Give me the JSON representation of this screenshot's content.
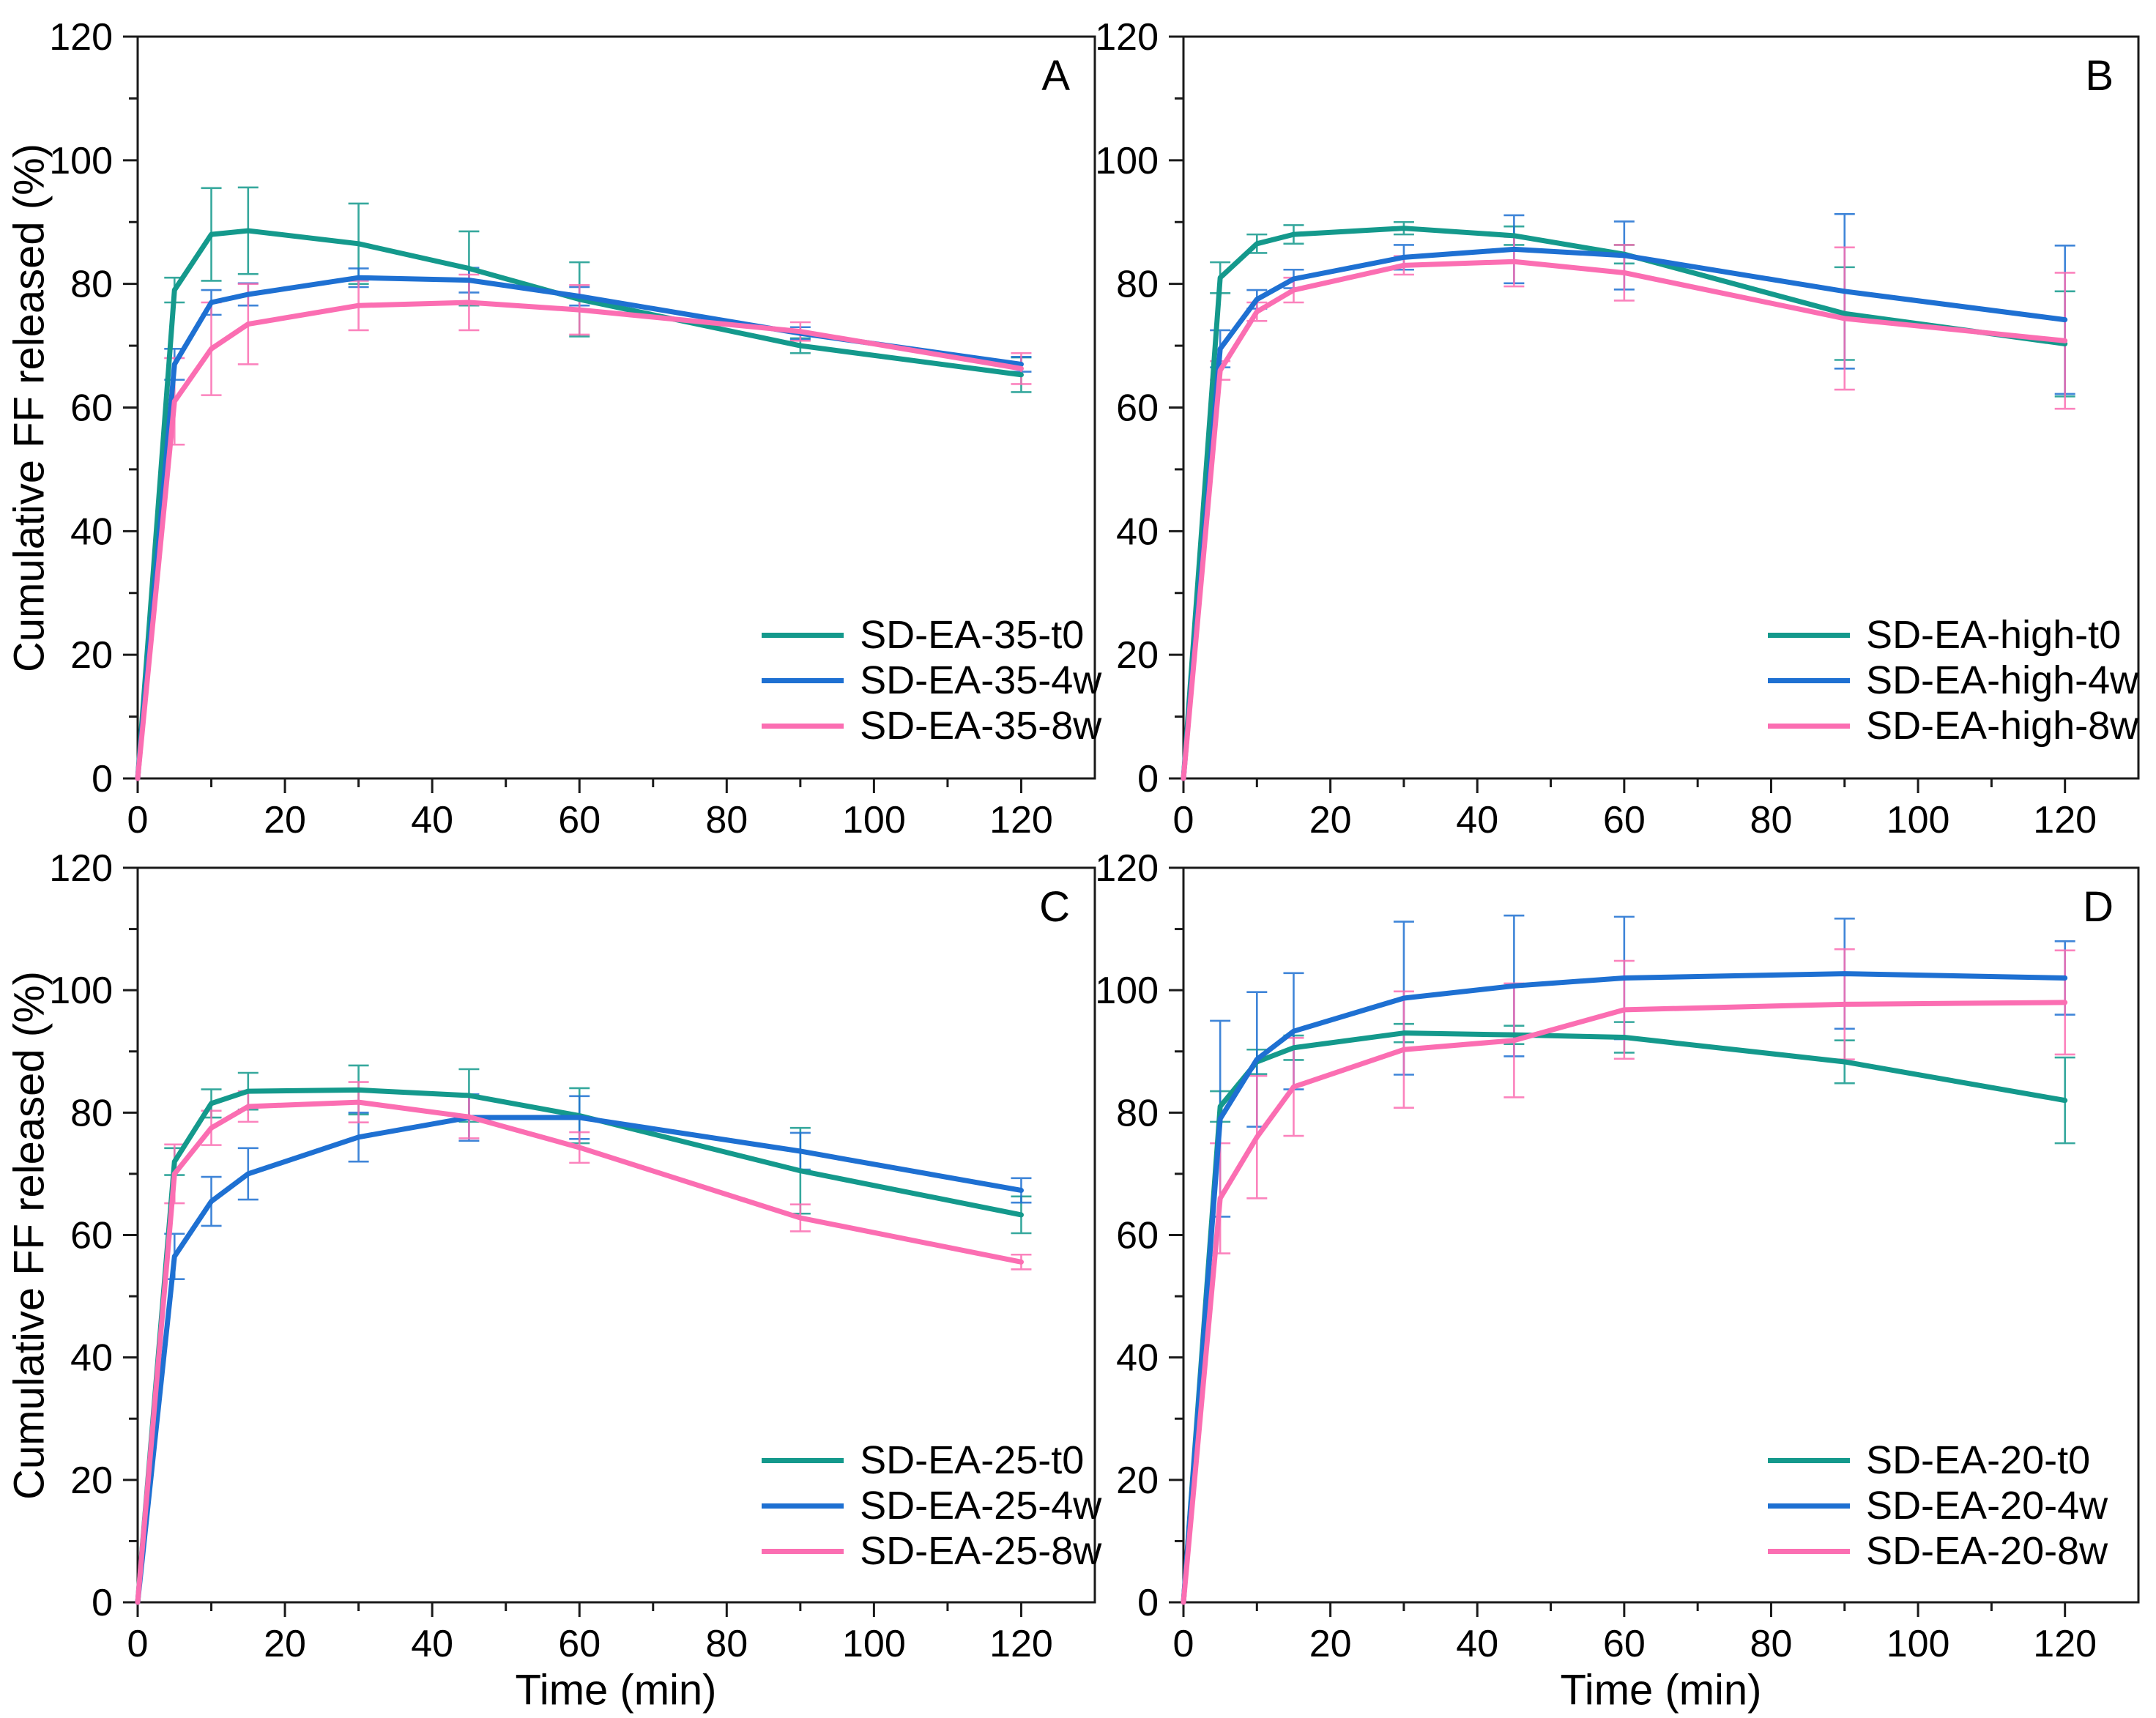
{
  "figure": {
    "y_axis_title": "Cumulative FF released (%)",
    "x_axis_title": "Time (min)",
    "accent_colors": {
      "t0_teal": "#14998C",
      "w4_blue": "#1E70D2",
      "w8_pink": "#FB6EB2",
      "axis_black": "#1a1a1a"
    }
  },
  "chart_data": [
    {
      "type": "line",
      "panel_label": "A",
      "xlabel": "",
      "ylabel": "Cumulative FF released (%)",
      "x": [
        0,
        5,
        10,
        15,
        30,
        45,
        60,
        90,
        120
      ],
      "xlim": [
        0,
        130
      ],
      "ylim": [
        0,
        120
      ],
      "x_ticks": [
        0,
        20,
        40,
        60,
        80,
        100,
        120
      ],
      "y_ticks": [
        0,
        20,
        40,
        60,
        80,
        100,
        120
      ],
      "grid": false,
      "legend_position": "lower right",
      "series": [
        {
          "name": "SD-EA-35-t0",
          "color": "#14998C",
          "values": [
            0,
            79,
            88,
            88.6,
            86.5,
            82.5,
            77.5,
            70,
            65.3
          ],
          "errors": [
            0,
            2,
            7.5,
            7,
            6.5,
            6,
            6,
            1.2,
            2.8
          ]
        },
        {
          "name": "SD-EA-35-4w",
          "color": "#1E70D2",
          "values": [
            0,
            67,
            77,
            78.3,
            81,
            80.6,
            78,
            72,
            67
          ],
          "errors": [
            0,
            2.5,
            2,
            1.8,
            1.5,
            2,
            1.5,
            1,
            1.2
          ]
        },
        {
          "name": "SD-EA-35-8w",
          "color": "#FB6EB2",
          "values": [
            0,
            61,
            69.5,
            73.5,
            76.5,
            77,
            75.8,
            72.3,
            66.3
          ],
          "errors": [
            0,
            7,
            7.5,
            6.5,
            4,
            4.5,
            4,
            1.5,
            2.5
          ]
        }
      ]
    },
    {
      "type": "line",
      "panel_label": "B",
      "xlabel": "",
      "ylabel": "",
      "x": [
        0,
        5,
        10,
        15,
        30,
        45,
        60,
        90,
        120
      ],
      "xlim": [
        0,
        130
      ],
      "ylim": [
        0,
        120
      ],
      "x_ticks": [
        0,
        20,
        40,
        60,
        80,
        100,
        120
      ],
      "y_ticks": [
        0,
        20,
        40,
        60,
        80,
        100,
        120
      ],
      "grid": false,
      "legend_position": "lower right",
      "series": [
        {
          "name": "SD-EA-high-t0",
          "color": "#14998C",
          "values": [
            0,
            81,
            86.5,
            88,
            89,
            87.8,
            84.8,
            75.2,
            70.3
          ],
          "errors": [
            0,
            2.5,
            1.5,
            1.5,
            1,
            1.5,
            1.5,
            7.5,
            8.5
          ]
        },
        {
          "name": "SD-EA-high-4w",
          "color": "#1E70D2",
          "values": [
            0,
            69.5,
            77.5,
            80.8,
            84.3,
            85.6,
            84.6,
            78.8,
            74.2
          ],
          "errors": [
            0,
            3,
            1.5,
            1.5,
            2,
            5.5,
            5.5,
            12.5,
            12
          ]
        },
        {
          "name": "SD-EA-high-8w",
          "color": "#FB6EB2",
          "values": [
            0,
            66,
            75.5,
            79,
            83,
            83.6,
            81.8,
            74.4,
            70.8
          ],
          "errors": [
            0,
            1.5,
            1.5,
            2,
            1.5,
            4,
            4.5,
            11.5,
            11
          ]
        }
      ]
    },
    {
      "type": "line",
      "panel_label": "C",
      "xlabel": "Time (min)",
      "ylabel": "Cumulative FF released (%)",
      "x": [
        0,
        5,
        10,
        15,
        30,
        45,
        60,
        90,
        120
      ],
      "xlim": [
        0,
        130
      ],
      "ylim": [
        0,
        120
      ],
      "x_ticks": [
        0,
        20,
        40,
        60,
        80,
        100,
        120
      ],
      "y_ticks": [
        0,
        20,
        40,
        60,
        80,
        100,
        120
      ],
      "grid": false,
      "legend_position": "lower right",
      "series": [
        {
          "name": "SD-EA-25-t0",
          "color": "#14998C",
          "values": [
            0,
            72,
            81.5,
            83.5,
            83.7,
            82.8,
            79.5,
            70.5,
            63.3
          ],
          "errors": [
            0,
            2.2,
            2.3,
            3,
            4,
            4.3,
            4.5,
            7,
            3
          ]
        },
        {
          "name": "SD-EA-25-4w",
          "color": "#1E70D2",
          "values": [
            0,
            56.5,
            65.5,
            70,
            76,
            79.2,
            79.2,
            73.7,
            67.3
          ],
          "errors": [
            0,
            3.7,
            4,
            4.2,
            4,
            3.8,
            3.5,
            3,
            2
          ]
        },
        {
          "name": "SD-EA-25-8w",
          "color": "#FB6EB2",
          "values": [
            0,
            70,
            77.5,
            81,
            81.7,
            79.3,
            74.3,
            62.8,
            55.6
          ],
          "errors": [
            0,
            4.8,
            2.8,
            2.5,
            3.3,
            3.5,
            2.5,
            2.2,
            1.2
          ]
        }
      ]
    },
    {
      "type": "line",
      "panel_label": "D",
      "xlabel": "Time (min)",
      "ylabel": "",
      "x": [
        0,
        5,
        10,
        15,
        30,
        45,
        60,
        90,
        120
      ],
      "xlim": [
        0,
        130
      ],
      "ylim": [
        0,
        120
      ],
      "x_ticks": [
        0,
        20,
        40,
        60,
        80,
        100,
        120
      ],
      "y_ticks": [
        0,
        20,
        40,
        60,
        80,
        100,
        120
      ],
      "grid": false,
      "legend_position": "lower right",
      "series": [
        {
          "name": "SD-EA-20-t0",
          "color": "#14998C",
          "values": [
            0,
            81,
            88.3,
            90.6,
            93,
            92.7,
            92.3,
            88.3,
            82
          ],
          "errors": [
            0,
            2.5,
            2,
            2,
            1.5,
            1.5,
            2.5,
            3.5,
            7
          ]
        },
        {
          "name": "SD-EA-20-4w",
          "color": "#1E70D2",
          "values": [
            0,
            79,
            88.7,
            93.3,
            98.7,
            100.7,
            102,
            102.7,
            102
          ],
          "errors": [
            0,
            16,
            11,
            9.5,
            12.5,
            11.5,
            10,
            9,
            6
          ]
        },
        {
          "name": "SD-EA-20-8w",
          "color": "#FB6EB2",
          "values": [
            0,
            66,
            76,
            84.2,
            90.3,
            91.8,
            96.8,
            97.7,
            98
          ],
          "errors": [
            0,
            9,
            10,
            8,
            9.5,
            9.3,
            8,
            9,
            8.5
          ]
        }
      ]
    }
  ]
}
